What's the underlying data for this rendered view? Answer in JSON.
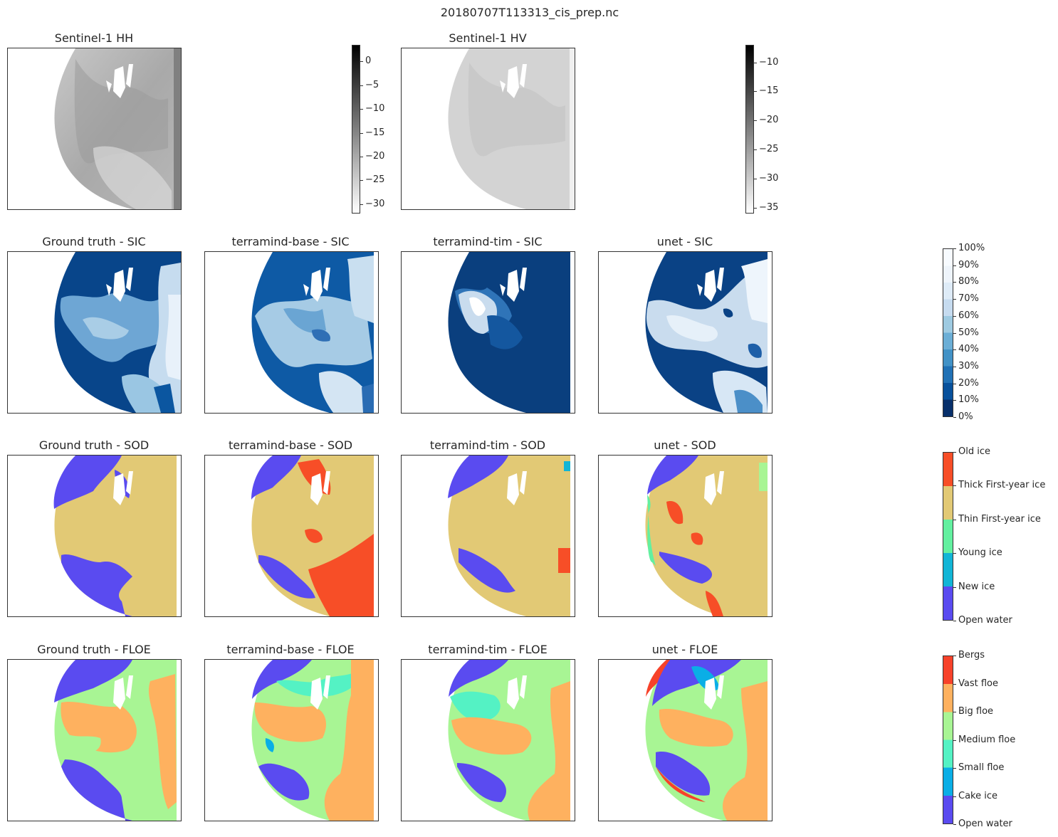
{
  "suptitle": "20180707T113313_cis_prep.nc",
  "rows": [
    {
      "titles": [
        "Sentinel-1 HH",
        "Sentinel-1 HV"
      ]
    },
    {
      "titles": [
        "Ground truth - SIC",
        "terramind-base - SIC",
        "terramind-tim - SIC",
        "unet - SIC"
      ]
    },
    {
      "titles": [
        "Ground truth - SOD",
        "terramind-base - SOD",
        "terramind-tim - SOD",
        "unet - SOD"
      ]
    },
    {
      "titles": [
        "Ground truth - FLOE",
        "terramind-base - FLOE",
        "terramind-tim - FLOE",
        "unet - FLOE"
      ]
    }
  ],
  "colorbars": {
    "hh": {
      "ticks": [
        "0",
        "−5",
        "−10",
        "−15",
        "−20",
        "−25",
        "−30"
      ],
      "range": [
        -32,
        3.5
      ]
    },
    "hv": {
      "ticks": [
        "−10",
        "−15",
        "−20",
        "−25",
        "−30",
        "−35"
      ],
      "range": [
        -36,
        -7
      ]
    },
    "sic": {
      "ticks": [
        "100%",
        "90%",
        "80%",
        "70%",
        "60%",
        "50%",
        "40%",
        "30%",
        "20%",
        "10%",
        "0%"
      ],
      "colors": [
        "#08306b",
        "#08519c",
        "#2171b5",
        "#4292c6",
        "#6baed6",
        "#9ecae1",
        "#c6dbef",
        "#deebf7",
        "#eef4fb",
        "#f7fbff"
      ]
    },
    "sod": {
      "ticks": [
        "Old ice",
        "Thick First-year ice",
        "Thin First-year ice",
        "Young ice",
        "New ice",
        "Open water"
      ],
      "colors": [
        "#5a4bf0",
        "#12b5d6",
        "#63f0a0",
        "#e2c975",
        "#f74e27"
      ]
    },
    "floe": {
      "ticks": [
        "Bergs",
        "Vast floe",
        "Big floe",
        "Medium floe",
        "Small floe",
        "Cake ice",
        "Open water"
      ],
      "colors": [
        "#5a4bf0",
        "#0aaee6",
        "#54f2c4",
        "#a8f594",
        "#feb15f",
        "#f7422a"
      ]
    }
  },
  "chart_data": {
    "type": "heatmap",
    "title": "20180707T113313_cis_prep.nc",
    "panels": [
      "Sentinel-1 HH",
      "Sentinel-1 HV",
      "Ground truth - SIC",
      "terramind-base - SIC",
      "terramind-tim - SIC",
      "unet - SIC",
      "Ground truth - SOD",
      "terramind-base - SOD",
      "terramind-tim - SOD",
      "unet - SOD",
      "Ground truth - FLOE",
      "terramind-base - FLOE",
      "terramind-tim - FLOE",
      "unet - FLOE"
    ],
    "colorbar_ranges": {
      "HH": [
        -32,
        3.5
      ],
      "HV": [
        -36,
        -7
      ],
      "SIC": [
        "0%",
        "100%"
      ]
    },
    "sod_classes": [
      "Open water",
      "New ice",
      "Young ice",
      "Thin First-year ice",
      "Thick First-year ice",
      "Old ice"
    ],
    "floe_classes": [
      "Open water",
      "Cake ice",
      "Small floe",
      "Medium floe",
      "Big floe",
      "Vast floe",
      "Bergs"
    ]
  }
}
